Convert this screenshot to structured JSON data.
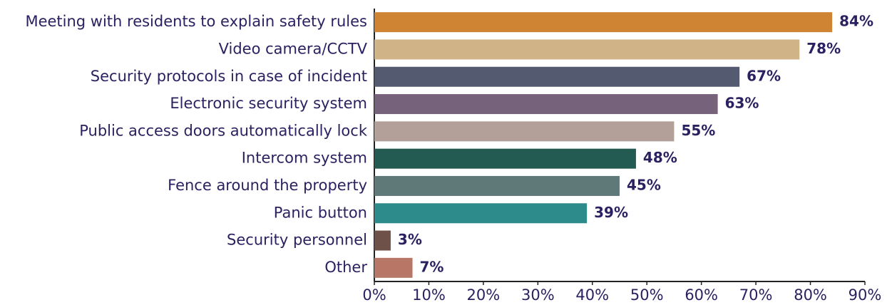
{
  "chart_data": {
    "type": "hbar",
    "categories": [
      "Meeting with residents to explain safety rules",
      "Video camera/CCTV",
      "Security protocols in case of incident",
      "Electronic security system",
      "Public access doors automatically lock",
      "Intercom system",
      "Fence around the property",
      "Panic button",
      "Security personnel",
      "Other"
    ],
    "values": [
      84,
      78,
      67,
      63,
      55,
      48,
      45,
      39,
      3,
      7
    ],
    "value_labels": [
      "84%",
      "78%",
      "67%",
      "63%",
      "55%",
      "48%",
      "45%",
      "39%",
      "3%",
      "7%"
    ],
    "colors": [
      "#cf8434",
      "#d0b387",
      "#545b70",
      "#77627b",
      "#b3a099",
      "#235a52",
      "#5f7878",
      "#2e8b8b",
      "#6e5148",
      "#b87666"
    ],
    "xlim": [
      0,
      90
    ],
    "xticks": [
      {
        "value": 0,
        "label": "0%"
      },
      {
        "value": 10,
        "label": "10%"
      },
      {
        "value": 20,
        "label": "20%"
      },
      {
        "value": 30,
        "label": "30%"
      },
      {
        "value": 40,
        "label": "40%"
      },
      {
        "value": 50,
        "label": "50%"
      },
      {
        "value": 60,
        "label": "60%"
      },
      {
        "value": 70,
        "label": "70%"
      },
      {
        "value": 80,
        "label": "80%"
      },
      {
        "value": 90,
        "label": "90%"
      }
    ],
    "grid": false
  }
}
